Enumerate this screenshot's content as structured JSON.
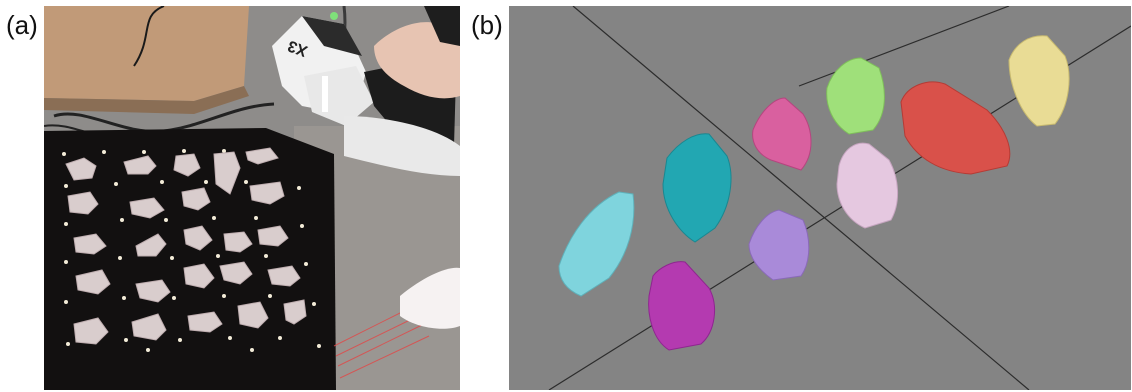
{
  "figure": {
    "panel_a": {
      "label": "(a)",
      "scanner_model_text": "X3"
    },
    "panel_b": {
      "label": "(b)"
    }
  },
  "colors": {
    "render_background": "#848484",
    "rock_cyan": "#7fd4dd",
    "rock_teal": "#22a7b2",
    "rock_pink": "#d9609f",
    "rock_lime": "#9fe07a",
    "rock_red": "#d9514a",
    "rock_yellow": "#e9dc95",
    "rock_lavender": "#e5c8e0",
    "rock_purple": "#a98ad9",
    "rock_magenta": "#b43ab0"
  }
}
